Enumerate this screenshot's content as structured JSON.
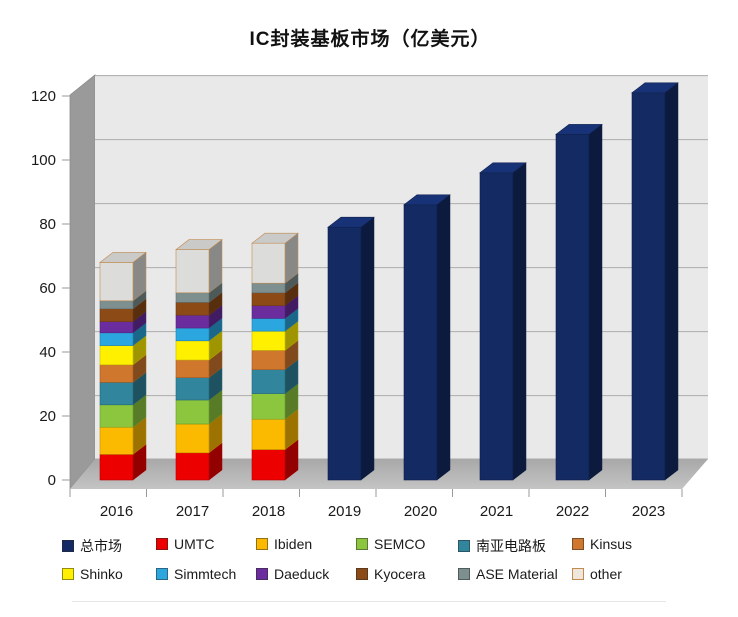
{
  "title": "IC封装基板市场（亿美元）",
  "chart_data": {
    "type": "bar",
    "variant": "3d-stacked-column",
    "title": "IC封装基板市场（亿美元）",
    "unit": "亿美元",
    "categories": [
      "2016",
      "2017",
      "2018",
      "2019",
      "2020",
      "2021",
      "2022",
      "2023"
    ],
    "ylim": [
      0,
      120
    ],
    "yticks": [
      0,
      20,
      40,
      60,
      80,
      100,
      120
    ],
    "grid": true,
    "legend_position": "bottom",
    "legend_rows": 2,
    "wall_color": "#e9e9e9",
    "gridline_color": "#adadad",
    "series": [
      {
        "name": "总市场",
        "color": "#132a63",
        "role": "total",
        "values": [
          null,
          null,
          null,
          79,
          86,
          96,
          108,
          121
        ]
      },
      {
        "name": "UMTC",
        "color": "#ec0000",
        "values": [
          8,
          8.5,
          9.5,
          null,
          null,
          null,
          null,
          null
        ]
      },
      {
        "name": "Ibiden",
        "color": "#fbba00",
        "values": [
          8.5,
          9,
          9.5,
          null,
          null,
          null,
          null,
          null
        ]
      },
      {
        "name": "SEMCO",
        "color": "#8cc63e",
        "values": [
          7,
          7.5,
          8,
          null,
          null,
          null,
          null,
          null
        ]
      },
      {
        "name": "南亚电路板",
        "color": "#31859c",
        "values": [
          7,
          7,
          7.5,
          null,
          null,
          null,
          null,
          null
        ]
      },
      {
        "name": "Kinsus",
        "color": "#d0772e",
        "values": [
          5.5,
          5.5,
          6,
          null,
          null,
          null,
          null,
          null
        ]
      },
      {
        "name": "Shinko",
        "color": "#fff000",
        "values": [
          6,
          6,
          6,
          null,
          null,
          null,
          null,
          null
        ]
      },
      {
        "name": "Simmtech",
        "color": "#2ba6de",
        "values": [
          4,
          4,
          4,
          null,
          null,
          null,
          null,
          null
        ]
      },
      {
        "name": "Daeduck",
        "color": "#6b2d9e",
        "values": [
          3.5,
          4,
          4,
          null,
          null,
          null,
          null,
          null
        ]
      },
      {
        "name": "Kyocera",
        "color": "#8c4a17",
        "values": [
          4,
          4,
          4,
          null,
          null,
          null,
          null,
          null
        ]
      },
      {
        "name": "ASE Material",
        "color": "#7d8f8f",
        "values": [
          2.5,
          3,
          3,
          null,
          null,
          null,
          null,
          null
        ]
      },
      {
        "name": "other",
        "color": "#dcdcda",
        "legend_fill": "#efe6dc",
        "border": "#c08a50",
        "values": [
          12,
          13.5,
          12.5,
          null,
          null,
          null,
          null,
          null
        ]
      }
    ],
    "stacked_totals": {
      "2016": 68,
      "2017": 72,
      "2018": 74
    }
  }
}
